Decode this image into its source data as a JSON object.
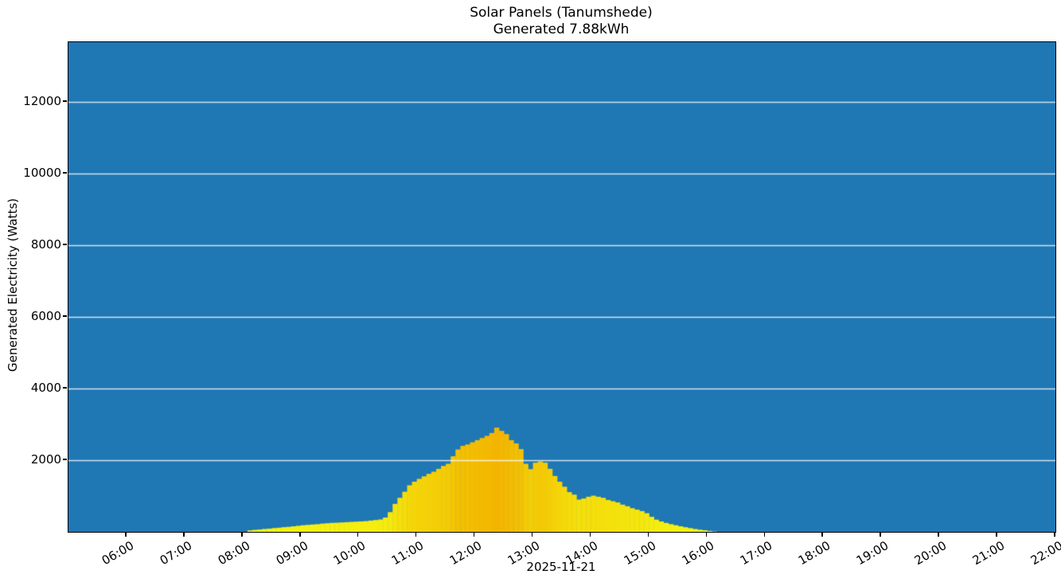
{
  "figure": {
    "title": "Solar Panels (Tanumshede)",
    "subtitle": "Generated 7.88kWh"
  },
  "chart_data": {
    "type": "bar",
    "title": "Solar Panels (Tanumshede)",
    "subtitle": "Generated 7.88kWh",
    "xlabel": "2025-11-21",
    "ylabel": "Generated Electricity (Watts)",
    "legend_position": "none",
    "grid": "horizontal-only",
    "x_ticks": [
      "06:00",
      "07:00",
      "08:00",
      "09:00",
      "10:00",
      "11:00",
      "12:00",
      "13:00",
      "14:00",
      "15:00",
      "16:00",
      "17:00",
      "18:00",
      "19:00",
      "20:00",
      "21:00",
      "22:00"
    ],
    "y_ticks": [
      2000,
      4000,
      6000,
      8000,
      10000,
      12000
    ],
    "x_range_hours": [
      5.0,
      22.0
    ],
    "ylim": [
      0,
      13670
    ],
    "bar_width_minutes": 5,
    "colors": {
      "figure_bg": "#ffffff",
      "plot_bg": "#1f77b4",
      "grid": "#ffffff",
      "spine": "#000000"
    },
    "colormap": {
      "bar_min_color": "#f4f411",
      "bar_max_color": "#f3b400",
      "vmin": 0,
      "vmax": 2910
    },
    "series": [
      {
        "name": "Generated Electricity (Watts)",
        "points": [
          [
            "08:05",
            40
          ],
          [
            "08:10",
            55
          ],
          [
            "08:15",
            65
          ],
          [
            "08:20",
            80
          ],
          [
            "08:25",
            90
          ],
          [
            "08:30",
            105
          ],
          [
            "08:35",
            115
          ],
          [
            "08:40",
            130
          ],
          [
            "08:45",
            140
          ],
          [
            "08:50",
            155
          ],
          [
            "08:55",
            170
          ],
          [
            "09:00",
            185
          ],
          [
            "09:05",
            195
          ],
          [
            "09:10",
            205
          ],
          [
            "09:15",
            215
          ],
          [
            "09:20",
            230
          ],
          [
            "09:25",
            240
          ],
          [
            "09:30",
            250
          ],
          [
            "09:35",
            255
          ],
          [
            "09:40",
            262
          ],
          [
            "09:45",
            270
          ],
          [
            "09:50",
            278
          ],
          [
            "09:55",
            285
          ],
          [
            "10:00",
            292
          ],
          [
            "10:05",
            300
          ],
          [
            "10:10",
            315
          ],
          [
            "10:15",
            330
          ],
          [
            "10:20",
            345
          ],
          [
            "10:25",
            400
          ],
          [
            "10:30",
            550
          ],
          [
            "10:35",
            780
          ],
          [
            "10:40",
            950
          ],
          [
            "10:45",
            1120
          ],
          [
            "10:50",
            1300
          ],
          [
            "10:55",
            1400
          ],
          [
            "11:00",
            1480
          ],
          [
            "11:05",
            1550
          ],
          [
            "11:10",
            1620
          ],
          [
            "11:15",
            1680
          ],
          [
            "11:20",
            1760
          ],
          [
            "11:25",
            1840
          ],
          [
            "11:30",
            1900
          ],
          [
            "11:35",
            2110
          ],
          [
            "11:40",
            2300
          ],
          [
            "11:45",
            2400
          ],
          [
            "11:50",
            2440
          ],
          [
            "11:55",
            2500
          ],
          [
            "12:00",
            2560
          ],
          [
            "12:05",
            2620
          ],
          [
            "12:10",
            2680
          ],
          [
            "12:15",
            2760
          ],
          [
            "12:20",
            2910
          ],
          [
            "12:25",
            2820
          ],
          [
            "12:30",
            2730
          ],
          [
            "12:35",
            2560
          ],
          [
            "12:40",
            2470
          ],
          [
            "12:45",
            2310
          ],
          [
            "12:50",
            1900
          ],
          [
            "12:55",
            1750
          ],
          [
            "13:00",
            1930
          ],
          [
            "13:05",
            1965
          ],
          [
            "13:10",
            1930
          ],
          [
            "13:15",
            1760
          ],
          [
            "13:20",
            1560
          ],
          [
            "13:25",
            1400
          ],
          [
            "13:30",
            1260
          ],
          [
            "13:35",
            1110
          ],
          [
            "13:40",
            1040
          ],
          [
            "13:45",
            900
          ],
          [
            "13:50",
            930
          ],
          [
            "13:55",
            980
          ],
          [
            "14:00",
            1010
          ],
          [
            "14:05",
            980
          ],
          [
            "14:10",
            950
          ],
          [
            "14:15",
            890
          ],
          [
            "14:20",
            855
          ],
          [
            "14:25",
            820
          ],
          [
            "14:30",
            760
          ],
          [
            "14:35",
            715
          ],
          [
            "14:40",
            660
          ],
          [
            "14:45",
            620
          ],
          [
            "14:50",
            580
          ],
          [
            "14:55",
            520
          ],
          [
            "15:00",
            420
          ],
          [
            "15:05",
            340
          ],
          [
            "15:10",
            290
          ],
          [
            "15:15",
            250
          ],
          [
            "15:20",
            215
          ],
          [
            "15:25",
            185
          ],
          [
            "15:30",
            155
          ],
          [
            "15:35",
            130
          ],
          [
            "15:40",
            105
          ],
          [
            "15:45",
            80
          ],
          [
            "15:50",
            60
          ],
          [
            "15:55",
            45
          ],
          [
            "16:00",
            25
          ],
          [
            "16:05",
            10
          ]
        ]
      }
    ]
  }
}
